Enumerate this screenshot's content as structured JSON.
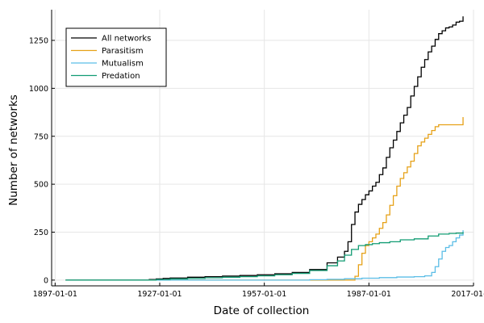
{
  "chart_data": {
    "type": "line",
    "title": "",
    "xlabel": "Date of collection",
    "ylabel": "Number of networks",
    "x_ticks": [
      "1897-01-01",
      "1927-01-01",
      "1957-01-01",
      "1987-01-01",
      "2017-01-01"
    ],
    "x_tick_years": [
      1897,
      1927,
      1957,
      1987,
      2017
    ],
    "y_ticks": [
      0,
      250,
      500,
      750,
      1000,
      1250
    ],
    "xlim": [
      1896,
      2017
    ],
    "ylim": [
      -30,
      1410
    ],
    "grid": true,
    "legend": {
      "position": "top-left",
      "framed": true
    },
    "series": [
      {
        "name": "All networks",
        "color": "#000000",
        "x": [
          1900,
          1922,
          1924,
          1926,
          1928,
          1930,
          1935,
          1940,
          1945,
          1950,
          1955,
          1960,
          1965,
          1970,
          1975,
          1978,
          1980,
          1981,
          1982,
          1983,
          1984,
          1985,
          1986,
          1987,
          1988,
          1989,
          1990,
          1991,
          1992,
          1993,
          1994,
          1995,
          1996,
          1997,
          1998,
          1999,
          2000,
          2001,
          2002,
          2003,
          2004,
          2005,
          2006,
          2007,
          2008,
          2009,
          2010,
          2011,
          2012,
          2013,
          2014
        ],
        "values": [
          0,
          0,
          3,
          6,
          9,
          11,
          15,
          18,
          21,
          24,
          28,
          33,
          40,
          55,
          90,
          120,
          150,
          200,
          290,
          355,
          395,
          420,
          445,
          465,
          490,
          510,
          550,
          585,
          640,
          690,
          730,
          775,
          820,
          860,
          900,
          960,
          1010,
          1060,
          1110,
          1150,
          1190,
          1220,
          1255,
          1285,
          1300,
          1315,
          1320,
          1330,
          1345,
          1350,
          1375
        ]
      },
      {
        "name": "Parasitism",
        "color": "#e6a117",
        "x": [
          1900,
          1980,
          1983,
          1984,
          1985,
          1986,
          1987,
          1988,
          1989,
          1990,
          1991,
          1992,
          1993,
          1994,
          1995,
          1996,
          1997,
          1998,
          1999,
          2000,
          2001,
          2002,
          2003,
          2004,
          2005,
          2006,
          2007,
          2008,
          2009,
          2010,
          2011,
          2012,
          2013,
          2014
        ],
        "values": [
          0,
          0,
          20,
          80,
          140,
          180,
          200,
          220,
          240,
          270,
          300,
          340,
          390,
          440,
          490,
          530,
          560,
          590,
          620,
          660,
          700,
          720,
          740,
          760,
          780,
          800,
          810,
          810,
          810,
          810,
          810,
          810,
          810,
          850
        ]
      },
      {
        "name": "Mutualism",
        "color": "#5bbde6",
        "x": [
          1900,
          1965,
          1970,
          1975,
          1980,
          1985,
          1990,
          1995,
          2000,
          2003,
          2005,
          2006,
          2007,
          2008,
          2009,
          2010,
          2011,
          2012,
          2013,
          2014
        ],
        "values": [
          0,
          0,
          2,
          4,
          7,
          10,
          13,
          16,
          18,
          22,
          40,
          70,
          110,
          150,
          170,
          180,
          200,
          220,
          235,
          260
        ]
      },
      {
        "name": "Predation",
        "color": "#129c73",
        "x": [
          1900,
          1922,
          1926,
          1930,
          1935,
          1940,
          1945,
          1950,
          1955,
          1960,
          1965,
          1970,
          1975,
          1978,
          1980,
          1982,
          1984,
          1986,
          1988,
          1990,
          1993,
          1996,
          2000,
          2004,
          2007,
          2010,
          2012,
          2014
        ],
        "values": [
          0,
          0,
          3,
          6,
          9,
          12,
          15,
          18,
          22,
          28,
          35,
          50,
          75,
          100,
          130,
          160,
          180,
          185,
          190,
          195,
          200,
          210,
          215,
          230,
          240,
          243,
          245,
          250
        ]
      }
    ]
  }
}
